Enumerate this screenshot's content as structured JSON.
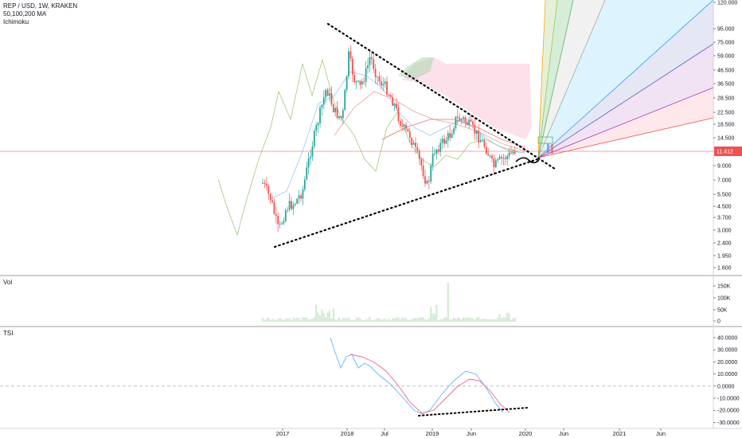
{
  "header": {
    "symbol_line": "REP / USD, 1W, KRAKEN",
    "ma_line": "50,100,200 MA",
    "ichimoku_line": "Ichimoku"
  },
  "panes": {
    "volume_label": "Vol",
    "tsi_label": "TSI"
  },
  "colors": {
    "up": "#26a69a",
    "down": "#ef5350",
    "price_line": "#ef5350",
    "trendline": "#000000",
    "tsi_main": "#64b5f6",
    "tsi_signal": "#f06292",
    "cloud_bull": "#a5d6a7",
    "cloud_bear": "#f8bbd0",
    "volume": "#c8e6c9"
  },
  "chart_data": [
    {
      "type": "candlestick",
      "pane": "price",
      "title": "REP / USD, 1W, KRAKEN",
      "y_axis_labels": [
        "120.000",
        "95.000",
        "75.000",
        "59.000",
        "46.500",
        "36.500",
        "28.500",
        "22.500",
        "18.500",
        "14.500",
        "11.412",
        "9.000",
        "7.000",
        "5.500",
        "4.500",
        "3.700",
        "3.000",
        "2.400",
        "1.950",
        "1.600"
      ],
      "current_price": "11.412",
      "x_axis_labels": [
        "2017",
        "2018",
        "Jul",
        "2019",
        "Jun",
        "2020",
        "Jun",
        "2021",
        "Jun"
      ],
      "log_scale": true,
      "overlays": [
        "50 MA",
        "100 MA",
        "200 MA",
        "Ichimoku cloud",
        "Fibonacci fan",
        "triangle trendlines"
      ]
    },
    {
      "type": "bar",
      "pane": "volume",
      "title": "Vol",
      "y_axis_labels": [
        "150K",
        "100K",
        "50K",
        "0"
      ]
    },
    {
      "type": "line",
      "pane": "tsi",
      "title": "TSI",
      "y_axis_labels": [
        "40.0000",
        "30.0000",
        "20.0000",
        "10.0000",
        "0.0000",
        "-10.0000",
        "-20.0000",
        "-30.0000"
      ]
    }
  ]
}
